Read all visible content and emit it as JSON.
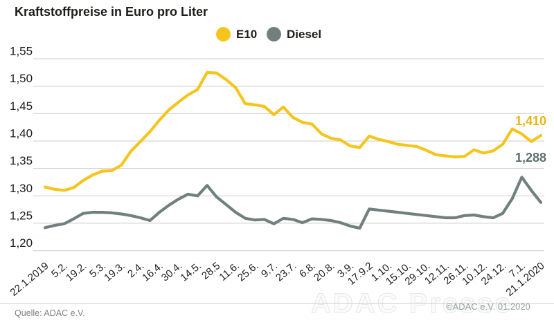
{
  "title": "Kraftstoffpreise in Euro pro Liter",
  "legend": {
    "e10": "E10",
    "diesel": "Diesel"
  },
  "value_labels": {
    "e10": "1,410",
    "diesel": "1,288"
  },
  "footer": {
    "source": "Quelle: ADAC e.V.",
    "watermark": "ADAC Presse",
    "copyright": "©ADAC e.V. 01.2020"
  },
  "colors": {
    "e10": "#F5C51D",
    "diesel": "#71807E",
    "e10_label": "#E9B512",
    "diesel_label": "#5E706E",
    "grid": "#cbcbcb",
    "text": "#1d1d1b"
  },
  "chart_data": {
    "type": "line",
    "title": "Kraftstoffpreise in Euro pro Liter",
    "xlabel": "",
    "ylabel": "Euro pro Liter",
    "ylim": [
      1.2,
      1.55
    ],
    "grid": true,
    "legend_position": "top-center",
    "y_ticks": [
      1.55,
      1.5,
      1.45,
      1.4,
      1.35,
      1.3,
      1.25,
      1.2
    ],
    "y_tick_labels": [
      "1,55",
      "1,50",
      "1,45",
      "1,40",
      "1,35",
      "1,30",
      "1,25",
      "1,20"
    ],
    "x_tick_labels": [
      "22.1.2019",
      "5.2.",
      "19.2.",
      "5.3.",
      "19.3.",
      "2.4.",
      "16.4.",
      "30.4.",
      "14.5.",
      "28.5",
      "11.6.",
      "25.6.",
      "9.7.",
      "23.7.",
      "6.8.",
      "20.8.",
      "3.9.",
      "17.9.2",
      "1.10.",
      "15.10.",
      "29.10.",
      "12.11.",
      "26.11.",
      "10.12.",
      "24.12.",
      "7.1.",
      "21.1.2020"
    ],
    "note": "weekly data points (53 values per series); x-axis labels mark every second point",
    "series": [
      {
        "name": "E10",
        "color": "#F5C51D",
        "end_label": "1,410",
        "values": [
          1.316,
          1.312,
          1.31,
          1.315,
          1.328,
          1.338,
          1.345,
          1.346,
          1.356,
          1.381,
          1.399,
          1.417,
          1.438,
          1.457,
          1.471,
          1.484,
          1.494,
          1.525,
          1.524,
          1.512,
          1.497,
          1.468,
          1.466,
          1.463,
          1.448,
          1.462,
          1.443,
          1.434,
          1.431,
          1.413,
          1.405,
          1.402,
          1.391,
          1.388,
          1.409,
          1.403,
          1.399,
          1.394,
          1.392,
          1.39,
          1.383,
          1.375,
          1.373,
          1.371,
          1.372,
          1.384,
          1.378,
          1.382,
          1.394,
          1.422,
          1.413,
          1.399,
          1.41
        ]
      },
      {
        "name": "Diesel",
        "color": "#71807E",
        "end_label": "1,288",
        "values": [
          1.242,
          1.246,
          1.249,
          1.258,
          1.268,
          1.27,
          1.27,
          1.269,
          1.267,
          1.264,
          1.26,
          1.255,
          1.27,
          1.283,
          1.294,
          1.303,
          1.3,
          1.319,
          1.298,
          1.284,
          1.27,
          1.259,
          1.256,
          1.257,
          1.249,
          1.259,
          1.257,
          1.251,
          1.258,
          1.257,
          1.255,
          1.251,
          1.245,
          1.241,
          1.276,
          1.274,
          1.272,
          1.27,
          1.268,
          1.266,
          1.264,
          1.262,
          1.26,
          1.26,
          1.264,
          1.265,
          1.262,
          1.26,
          1.268,
          1.295,
          1.334,
          1.31,
          1.288
        ]
      }
    ]
  }
}
